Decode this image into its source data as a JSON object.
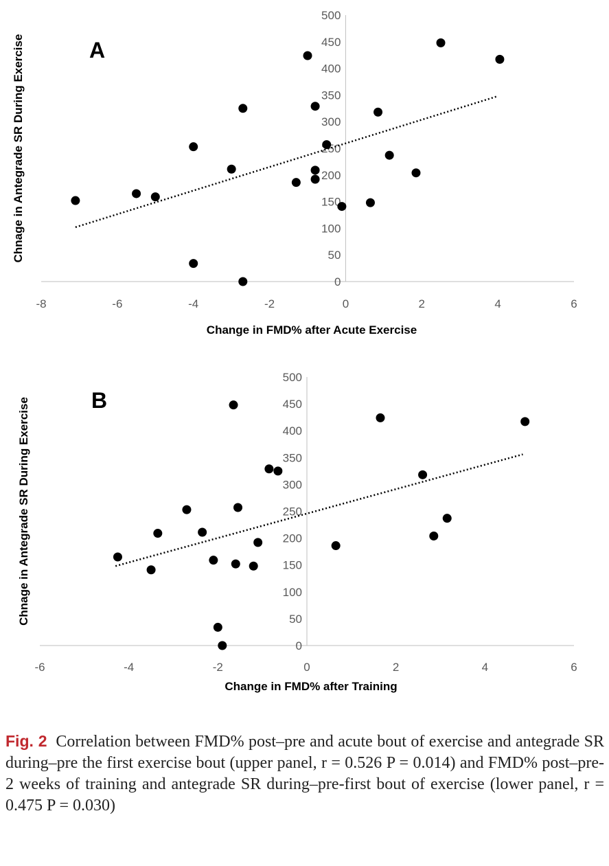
{
  "chart_data": [
    {
      "type": "scatter",
      "panel_label": "A",
      "xlabel": "Change in FMD% after Acute Exercise",
      "ylabel": "Chnage in Antegrade SR During Exercise",
      "xlim": [
        -8,
        6
      ],
      "ylim": [
        0,
        500
      ],
      "xticks": [
        -8,
        -6,
        -4,
        -2,
        0,
        2,
        4,
        6
      ],
      "yticks": [
        0,
        50,
        100,
        150,
        200,
        250,
        300,
        350,
        400,
        450,
        500
      ],
      "grid": false,
      "trendline": {
        "style": "dotted",
        "x": [
          -7.1,
          4.0
        ],
        "y": [
          102,
          348
        ]
      },
      "points": [
        {
          "x": -7.1,
          "y": 152
        },
        {
          "x": -5.5,
          "y": 165
        },
        {
          "x": -5.0,
          "y": 159
        },
        {
          "x": -4.0,
          "y": 253
        },
        {
          "x": -4.0,
          "y": 34
        },
        {
          "x": -3.0,
          "y": 211
        },
        {
          "x": -2.7,
          "y": 325
        },
        {
          "x": -2.7,
          "y": 0
        },
        {
          "x": -1.3,
          "y": 186
        },
        {
          "x": -1.0,
          "y": 424
        },
        {
          "x": -0.8,
          "y": 329
        },
        {
          "x": -0.8,
          "y": 209
        },
        {
          "x": -0.8,
          "y": 192
        },
        {
          "x": -0.5,
          "y": 257
        },
        {
          "x": -0.1,
          "y": 141
        },
        {
          "x": 0.65,
          "y": 148
        },
        {
          "x": 0.85,
          "y": 318
        },
        {
          "x": 1.15,
          "y": 237
        },
        {
          "x": 1.85,
          "y": 204
        },
        {
          "x": 2.5,
          "y": 448
        },
        {
          "x": 4.05,
          "y": 417
        }
      ]
    },
    {
      "type": "scatter",
      "panel_label": "B",
      "xlabel": "Change in FMD% after Training",
      "ylabel": "Chnage in Antegrade SR During Exercise",
      "xlim": [
        -6,
        6
      ],
      "ylim": [
        0,
        500
      ],
      "xticks": [
        -6,
        -4,
        -2,
        0,
        2,
        4,
        6
      ],
      "yticks": [
        0,
        50,
        100,
        150,
        200,
        250,
        300,
        350,
        400,
        450,
        500
      ],
      "grid": false,
      "trendline": {
        "style": "dotted",
        "x": [
          -4.3,
          4.85
        ],
        "y": [
          148,
          356
        ]
      },
      "points": [
        {
          "x": -4.25,
          "y": 165
        },
        {
          "x": -3.5,
          "y": 141
        },
        {
          "x": -3.35,
          "y": 209
        },
        {
          "x": -2.7,
          "y": 253
        },
        {
          "x": -2.35,
          "y": 211
        },
        {
          "x": -2.1,
          "y": 159
        },
        {
          "x": -2.0,
          "y": 34
        },
        {
          "x": -1.9,
          "y": 0
        },
        {
          "x": -1.65,
          "y": 448
        },
        {
          "x": -1.6,
          "y": 152
        },
        {
          "x": -1.55,
          "y": 257
        },
        {
          "x": -1.2,
          "y": 148
        },
        {
          "x": -1.1,
          "y": 192
        },
        {
          "x": -0.85,
          "y": 329
        },
        {
          "x": -0.65,
          "y": 325
        },
        {
          "x": 0.65,
          "y": 186
        },
        {
          "x": 1.65,
          "y": 424
        },
        {
          "x": 2.6,
          "y": 318
        },
        {
          "x": 2.85,
          "y": 204
        },
        {
          "x": 3.15,
          "y": 237
        },
        {
          "x": 4.9,
          "y": 417
        }
      ]
    }
  ],
  "caption": {
    "label": "Fig. 2",
    "text": "Correlation between FMD% post–pre and acute bout of exercise and antegrade SR during–pre the first exercise bout (upper panel, r = 0.526 P = 0.014) and FMD% post–pre-2 weeks of training and antegrade SR during–pre-first bout of exercise (lower panel, r = 0.475 P = 0.030)"
  }
}
